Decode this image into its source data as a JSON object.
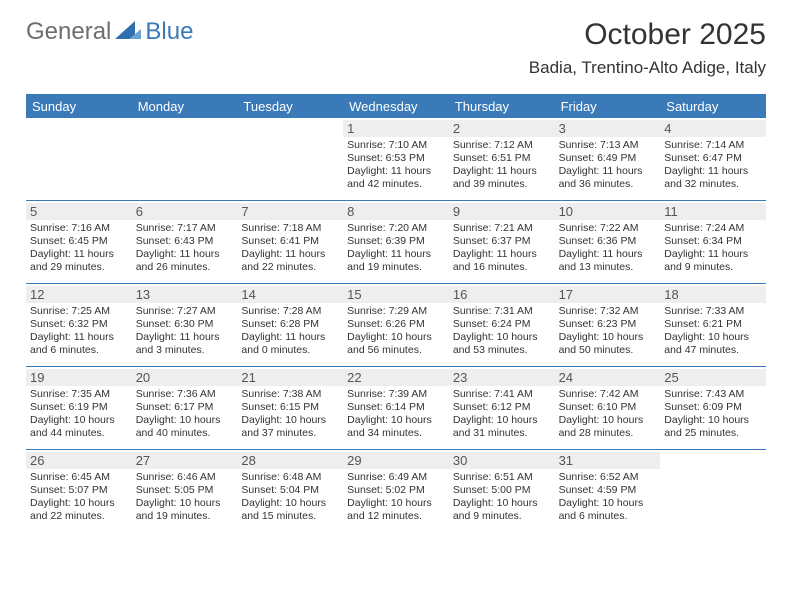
{
  "brand": {
    "general": "General",
    "blue": "Blue"
  },
  "title": "October 2025",
  "location": "Badia, Trentino-Alto Adige, Italy",
  "colors": {
    "accent": "#3a7ab8",
    "daynum_bg": "#eeeeee",
    "text": "#333333",
    "border": "#3a7ab8"
  },
  "days_of_week": [
    "Sunday",
    "Monday",
    "Tuesday",
    "Wednesday",
    "Thursday",
    "Friday",
    "Saturday"
  ],
  "weeks": [
    [
      null,
      null,
      null,
      {
        "n": "1",
        "sunrise": "7:10 AM",
        "sunset": "6:53 PM",
        "daylight": "11 hours and 42 minutes."
      },
      {
        "n": "2",
        "sunrise": "7:12 AM",
        "sunset": "6:51 PM",
        "daylight": "11 hours and 39 minutes."
      },
      {
        "n": "3",
        "sunrise": "7:13 AM",
        "sunset": "6:49 PM",
        "daylight": "11 hours and 36 minutes."
      },
      {
        "n": "4",
        "sunrise": "7:14 AM",
        "sunset": "6:47 PM",
        "daylight": "11 hours and 32 minutes."
      }
    ],
    [
      {
        "n": "5",
        "sunrise": "7:16 AM",
        "sunset": "6:45 PM",
        "daylight": "11 hours and 29 minutes."
      },
      {
        "n": "6",
        "sunrise": "7:17 AM",
        "sunset": "6:43 PM",
        "daylight": "11 hours and 26 minutes."
      },
      {
        "n": "7",
        "sunrise": "7:18 AM",
        "sunset": "6:41 PM",
        "daylight": "11 hours and 22 minutes."
      },
      {
        "n": "8",
        "sunrise": "7:20 AM",
        "sunset": "6:39 PM",
        "daylight": "11 hours and 19 minutes."
      },
      {
        "n": "9",
        "sunrise": "7:21 AM",
        "sunset": "6:37 PM",
        "daylight": "11 hours and 16 minutes."
      },
      {
        "n": "10",
        "sunrise": "7:22 AM",
        "sunset": "6:36 PM",
        "daylight": "11 hours and 13 minutes."
      },
      {
        "n": "11",
        "sunrise": "7:24 AM",
        "sunset": "6:34 PM",
        "daylight": "11 hours and 9 minutes."
      }
    ],
    [
      {
        "n": "12",
        "sunrise": "7:25 AM",
        "sunset": "6:32 PM",
        "daylight": "11 hours and 6 minutes."
      },
      {
        "n": "13",
        "sunrise": "7:27 AM",
        "sunset": "6:30 PM",
        "daylight": "11 hours and 3 minutes."
      },
      {
        "n": "14",
        "sunrise": "7:28 AM",
        "sunset": "6:28 PM",
        "daylight": "11 hours and 0 minutes."
      },
      {
        "n": "15",
        "sunrise": "7:29 AM",
        "sunset": "6:26 PM",
        "daylight": "10 hours and 56 minutes."
      },
      {
        "n": "16",
        "sunrise": "7:31 AM",
        "sunset": "6:24 PM",
        "daylight": "10 hours and 53 minutes."
      },
      {
        "n": "17",
        "sunrise": "7:32 AM",
        "sunset": "6:23 PM",
        "daylight": "10 hours and 50 minutes."
      },
      {
        "n": "18",
        "sunrise": "7:33 AM",
        "sunset": "6:21 PM",
        "daylight": "10 hours and 47 minutes."
      }
    ],
    [
      {
        "n": "19",
        "sunrise": "7:35 AM",
        "sunset": "6:19 PM",
        "daylight": "10 hours and 44 minutes."
      },
      {
        "n": "20",
        "sunrise": "7:36 AM",
        "sunset": "6:17 PM",
        "daylight": "10 hours and 40 minutes."
      },
      {
        "n": "21",
        "sunrise": "7:38 AM",
        "sunset": "6:15 PM",
        "daylight": "10 hours and 37 minutes."
      },
      {
        "n": "22",
        "sunrise": "7:39 AM",
        "sunset": "6:14 PM",
        "daylight": "10 hours and 34 minutes."
      },
      {
        "n": "23",
        "sunrise": "7:41 AM",
        "sunset": "6:12 PM",
        "daylight": "10 hours and 31 minutes."
      },
      {
        "n": "24",
        "sunrise": "7:42 AM",
        "sunset": "6:10 PM",
        "daylight": "10 hours and 28 minutes."
      },
      {
        "n": "25",
        "sunrise": "7:43 AM",
        "sunset": "6:09 PM",
        "daylight": "10 hours and 25 minutes."
      }
    ],
    [
      {
        "n": "26",
        "sunrise": "6:45 AM",
        "sunset": "5:07 PM",
        "daylight": "10 hours and 22 minutes."
      },
      {
        "n": "27",
        "sunrise": "6:46 AM",
        "sunset": "5:05 PM",
        "daylight": "10 hours and 19 minutes."
      },
      {
        "n": "28",
        "sunrise": "6:48 AM",
        "sunset": "5:04 PM",
        "daylight": "10 hours and 15 minutes."
      },
      {
        "n": "29",
        "sunrise": "6:49 AM",
        "sunset": "5:02 PM",
        "daylight": "10 hours and 12 minutes."
      },
      {
        "n": "30",
        "sunrise": "6:51 AM",
        "sunset": "5:00 PM",
        "daylight": "10 hours and 9 minutes."
      },
      {
        "n": "31",
        "sunrise": "6:52 AM",
        "sunset": "4:59 PM",
        "daylight": "10 hours and 6 minutes."
      },
      null
    ]
  ],
  "labels": {
    "sunrise": "Sunrise:",
    "sunset": "Sunset:",
    "daylight": "Daylight:"
  }
}
